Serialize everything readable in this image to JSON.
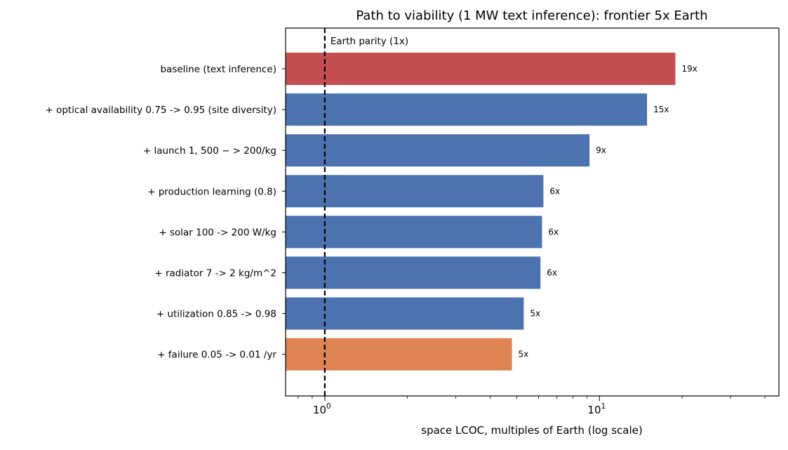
{
  "chart_data": {
    "type": "bar",
    "orientation": "horizontal",
    "title": "Path to viability (1 MW text inference): frontier 5x Earth",
    "xlabel": "space LCOC, multiples of Earth (log scale)",
    "ylabel": "",
    "xscale": "log",
    "xlim": [
      0.72,
      45
    ],
    "xticks": [
      {
        "value": 1,
        "base": "10",
        "exp": "0"
      },
      {
        "value": 10,
        "base": "10",
        "exp": "1"
      }
    ],
    "grid": false,
    "categories": [
      "baseline (text inference)",
      "+ optical availability 0.75 -> 0.95 (site diversity)",
      "+ launch 1, 500 − > 200/kg",
      "+ production learning (0.8)",
      "+ solar 100 -> 200 W/kg",
      "+ radiator 7 -> 2 kg/m^2",
      "+ utilization 0.85 -> 0.98",
      "+ failure 0.05 -> 0.01 /yr"
    ],
    "values": [
      18.9,
      14.9,
      9.2,
      6.25,
      6.18,
      6.1,
      5.3,
      4.8
    ],
    "bar_labels": [
      "19x",
      "15x",
      "9x",
      "6x",
      "6x",
      "6x",
      "5x",
      "5x"
    ],
    "bar_colors": [
      "#c44e52",
      "#4c72b0",
      "#4c72b0",
      "#4c72b0",
      "#4c72b0",
      "#4c72b0",
      "#4c72b0",
      "#dd8452"
    ],
    "reference_line": {
      "value": 1,
      "label": "Earth parity (1x)",
      "style": "dashed",
      "color": "#000000"
    }
  }
}
